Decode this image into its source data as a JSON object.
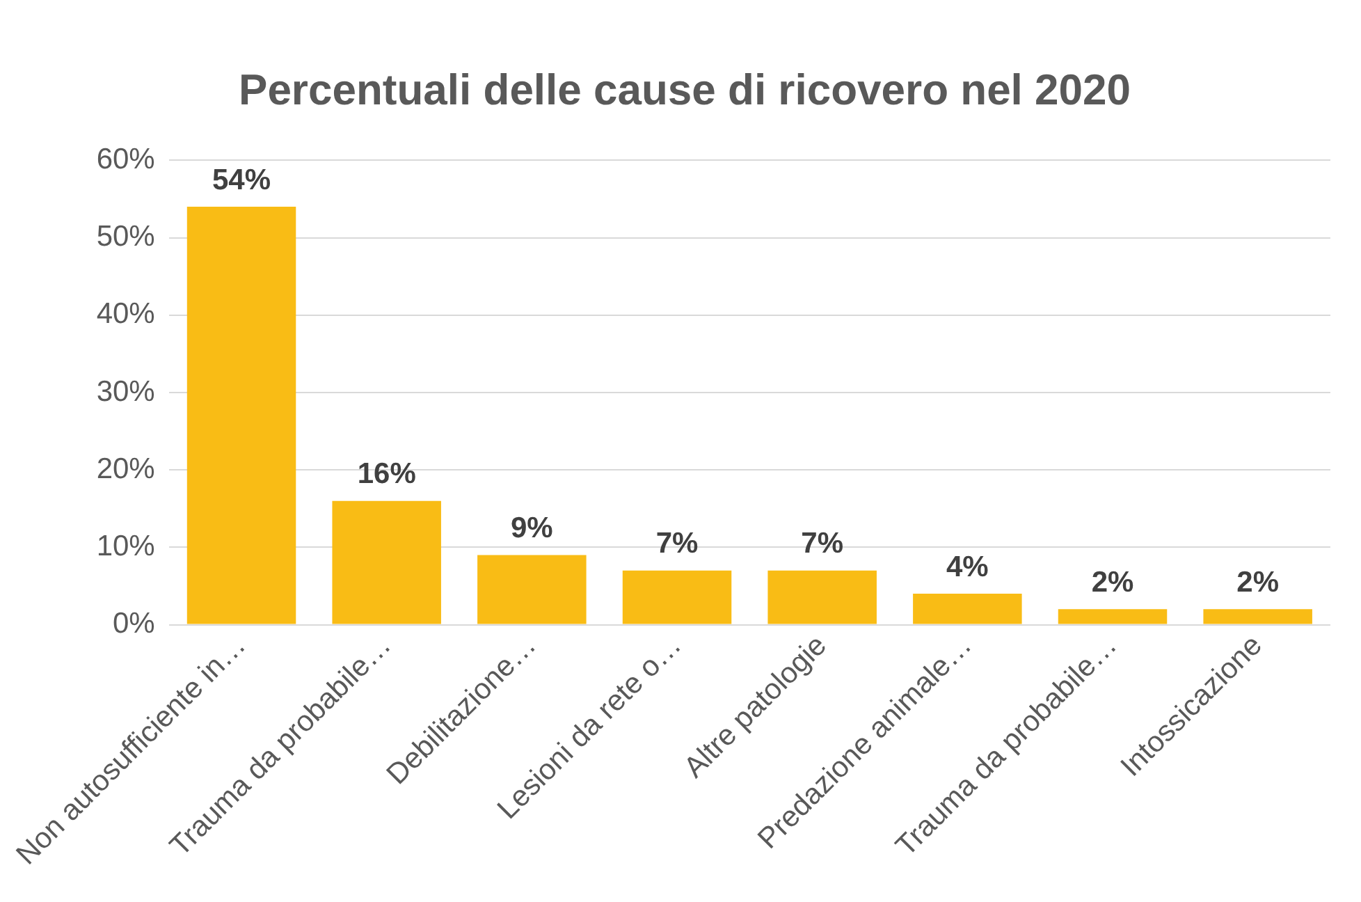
{
  "chart_data": {
    "type": "bar",
    "title": "Percentuali delle cause di ricovero nel 2020",
    "categories": [
      "Non autosufficiente in…",
      "Trauma da probabile…",
      "Debilitazione…",
      "Lesioni da rete o…",
      "Altre patologie",
      "Predazione animale…",
      "Trauma da probabile…",
      "Intossicazione"
    ],
    "values": [
      54,
      16,
      9,
      7,
      7,
      4,
      2,
      2
    ],
    "color": "#f9bc15",
    "ylim": [
      0,
      60
    ],
    "yticks": [
      {
        "value": 0,
        "label": "0%"
      },
      {
        "value": 10,
        "label": "10%"
      },
      {
        "value": 20,
        "label": "20%"
      },
      {
        "value": 30,
        "label": "30%"
      },
      {
        "value": 40,
        "label": "40%"
      },
      {
        "value": 50,
        "label": "50%"
      },
      {
        "value": 60,
        "label": "60%"
      }
    ],
    "value_labels": [
      "54%",
      "16%",
      "9%",
      "7%",
      "7%",
      "4%",
      "2%",
      "2%"
    ],
    "grid": "y",
    "legend": false
  }
}
